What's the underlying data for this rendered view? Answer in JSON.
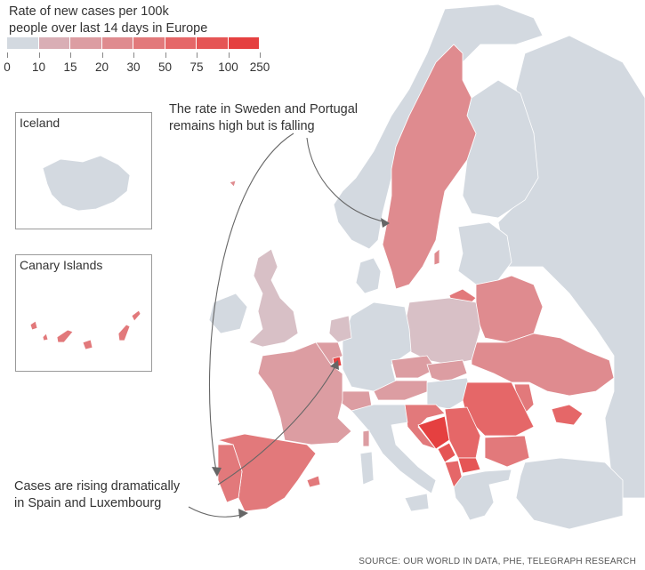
{
  "title": {
    "line1": "Rate of new cases per 100k",
    "line2": "people over last 14 days in Europe"
  },
  "legend": {
    "labels": [
      "0",
      "10",
      "15",
      "20",
      "30",
      "50",
      "75",
      "100",
      "250"
    ],
    "colors": [
      "#d3d9e0",
      "#d8c0c6",
      "#d9aeb5",
      "#dc9da2",
      "#df8b8f",
      "#e2797b",
      "#e56768",
      "#e55555",
      "#e54040"
    ]
  },
  "insets": {
    "iceland": "Iceland",
    "canary": "Canary Islands"
  },
  "annotations": {
    "sweden_portugal": {
      "line1": "The rate in Sweden and Portugal",
      "line2": "remains high but is falling"
    },
    "spain_luxembourg": {
      "line1": "Cases are rising dramatically",
      "line2": "in Spain and Luxembourg"
    }
  },
  "source": "SOURCE: OUR WORLD IN DATA, PHE, TELEGRAPH RESEARCH",
  "regions": {
    "norway": "#d3d9e0",
    "sweden": "#df8b8f",
    "finland": "#d3d9e0",
    "russia": "#d3d9e0",
    "uk": "#d8c0c6",
    "ireland": "#d3d9e0",
    "france": "#dc9da2",
    "spain": "#e2797b",
    "portugal": "#e2797b",
    "luxembourg": "#e54040",
    "belgium": "#dc9da2",
    "netherlands": "#d8c0c6",
    "germany": "#d3d9e0",
    "switzerland": "#dc9da2",
    "austria": "#dc9da2",
    "italy": "#d3d9e0",
    "poland": "#d8c0c6",
    "czechia": "#dc9da2",
    "slovakia": "#dc9da2",
    "hungary": "#d3d9e0",
    "romania": "#e56768",
    "bulgaria": "#e2797b",
    "serbia": "#e56768",
    "bosnia": "#e54040",
    "croatia": "#e2797b",
    "montenegro": "#e55555",
    "north_macedonia": "#e55555",
    "albania": "#e56768",
    "greece": "#d3d9e0",
    "ukraine": "#df8b8f",
    "belarus": "#df8b8f",
    "baltics": "#d3d9e0",
    "lithuania_n": "#e2797b",
    "moldova": "#e2797b",
    "crimea": "#e56768",
    "denmark": "#d3d9e0",
    "turkey": "#d3d9e0",
    "iceland": "#d3d9e0",
    "canary": "#e2797b"
  }
}
